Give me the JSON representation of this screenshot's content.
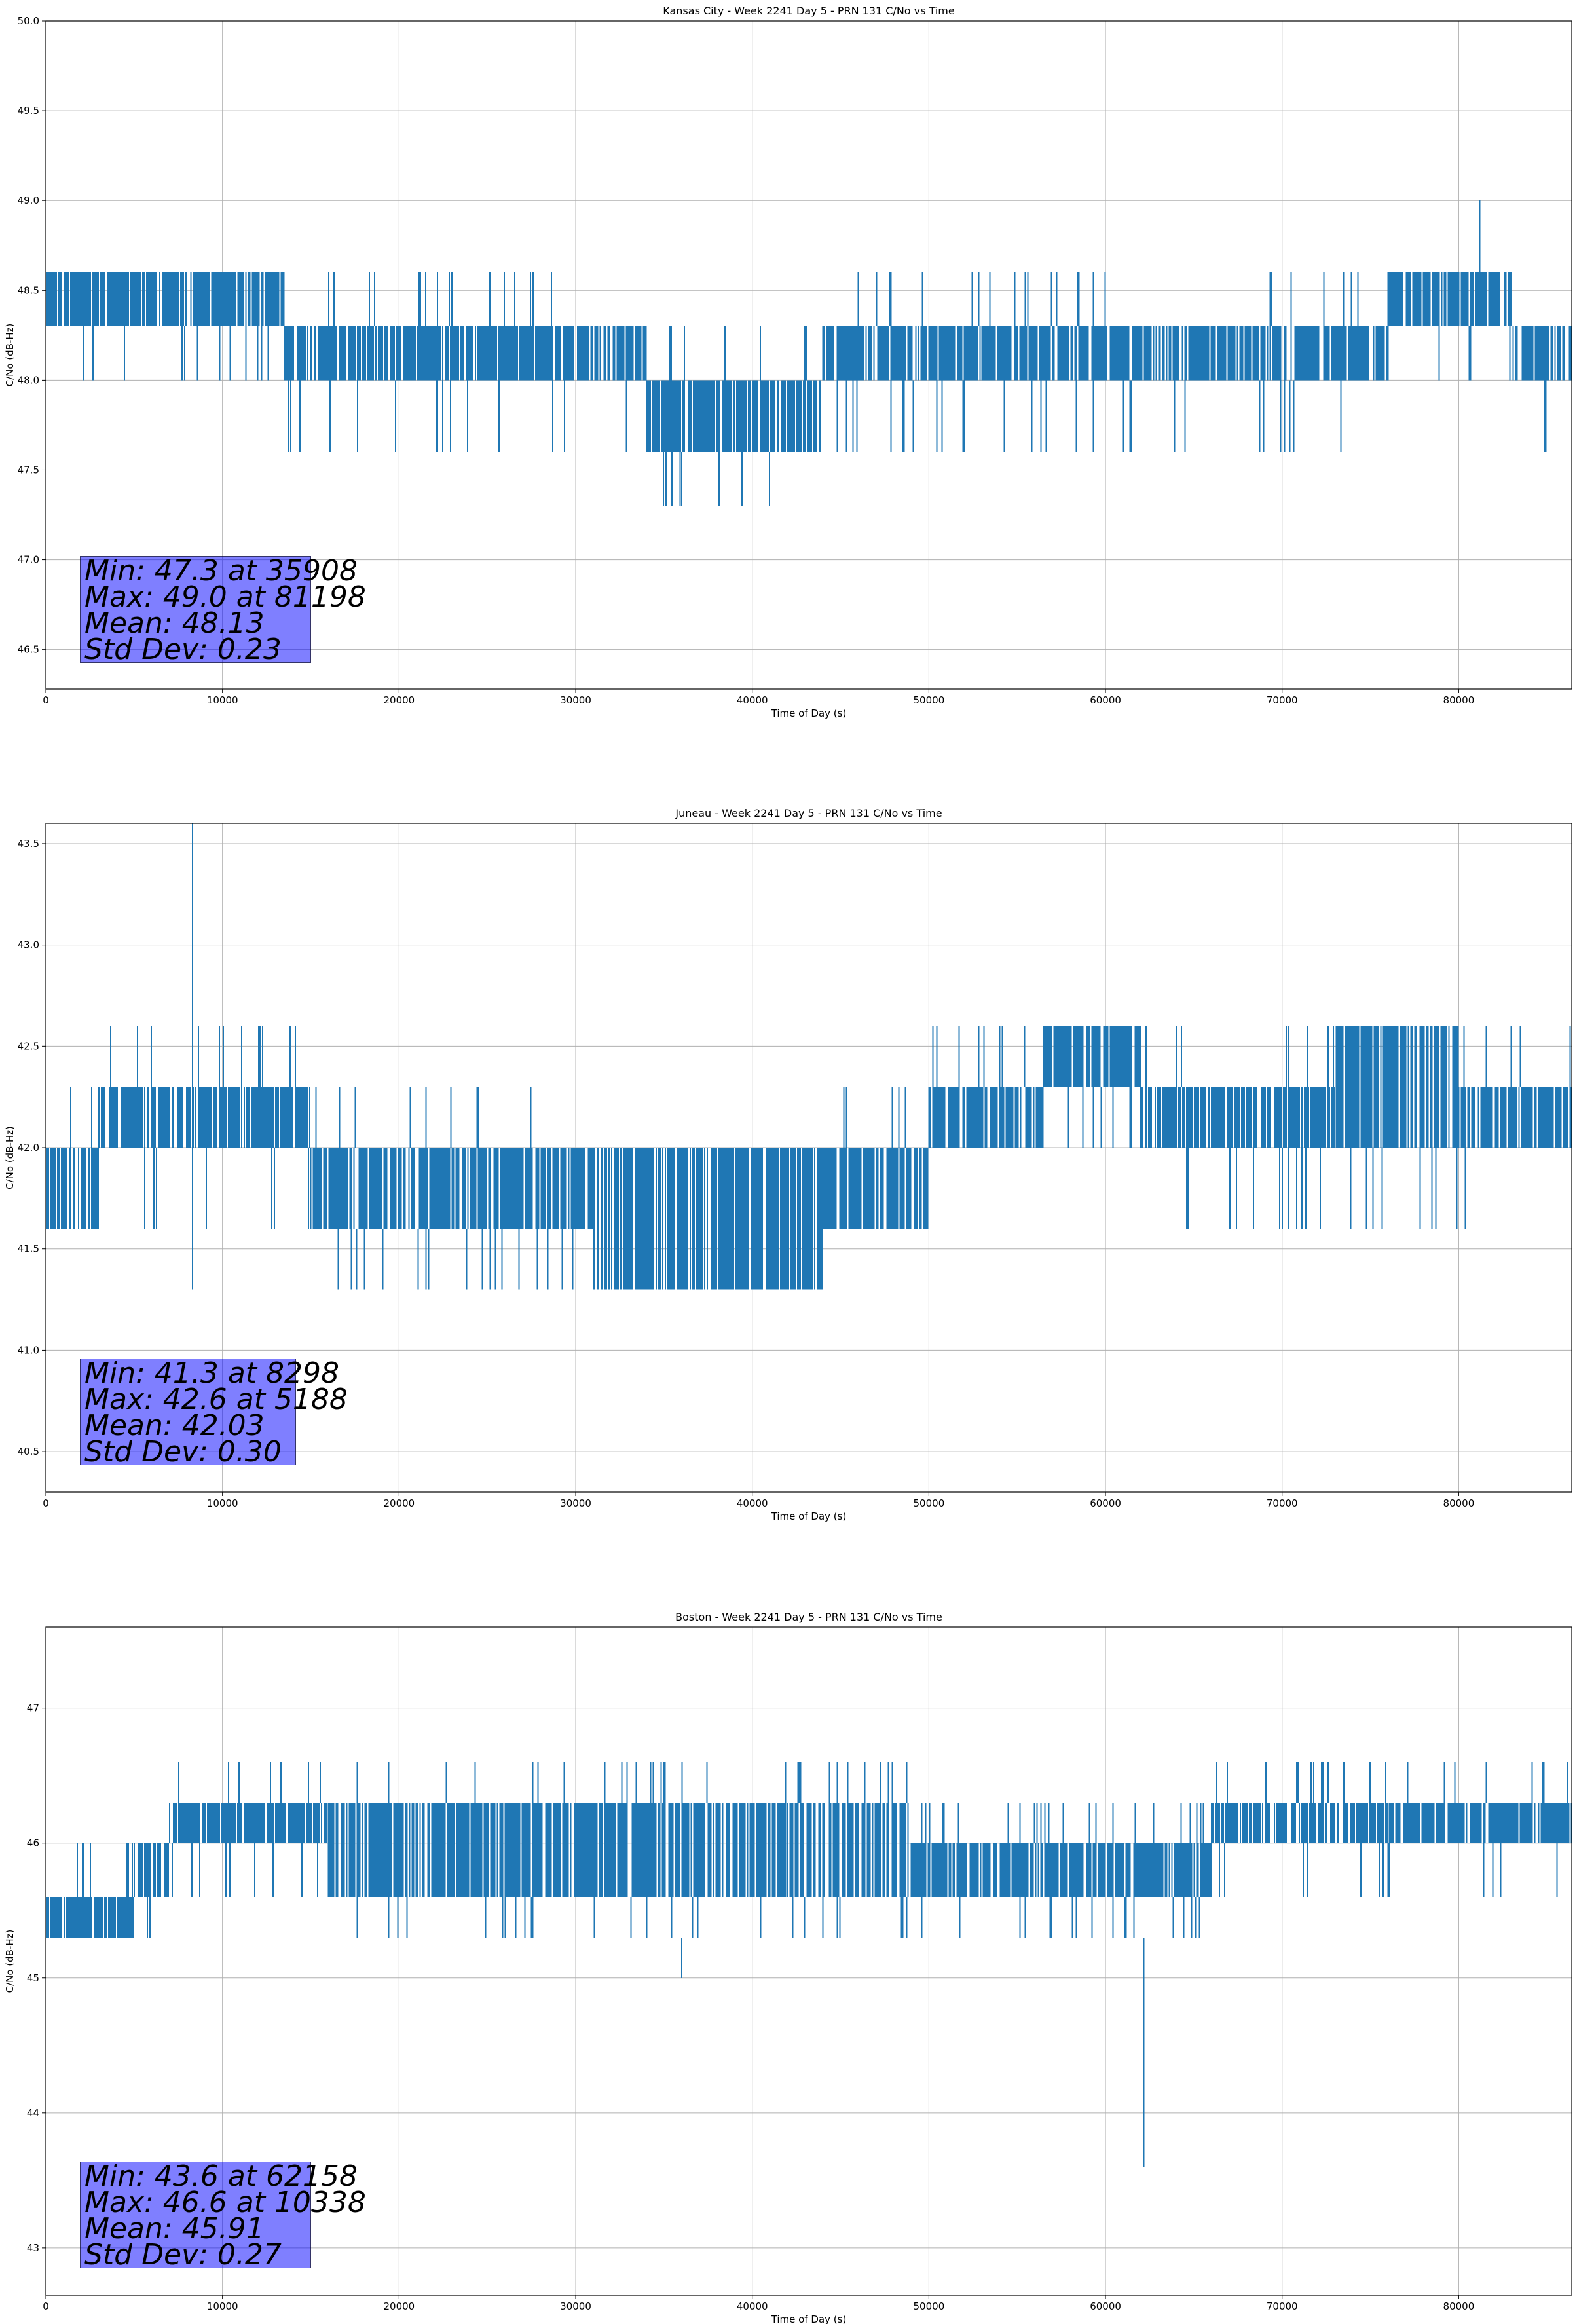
{
  "chart_data": [
    {
      "type": "line",
      "title": "Kansas City - Week 2241 Day 5 - PRN 131 C/No vs Time",
      "xlabel": "Time of Day (s)",
      "ylabel": "C/No (dB-Hz)",
      "xlim": [
        0,
        86400
      ],
      "ylim": [
        46.28,
        50.0
      ],
      "xticks": [
        0,
        10000,
        20000,
        30000,
        40000,
        50000,
        60000,
        70000,
        80000
      ],
      "yticks": [
        46.5,
        47.0,
        47.5,
        48.0,
        48.5,
        49.0,
        49.5,
        50.0
      ],
      "ytick_labels": [
        "46.5",
        "47.0",
        "47.5",
        "48.0",
        "48.5",
        "49.0",
        "49.5",
        "50.0"
      ],
      "grid": true,
      "color": "#1f77b4",
      "levels": [
        47.6,
        48.0,
        48.3,
        48.6
      ],
      "segments": [
        {
          "x": [
            0,
            8000
          ],
          "band": [
            48.3,
            48.6
          ],
          "dips": [
            48.0
          ]
        },
        {
          "x": [
            8000,
            13500
          ],
          "band": [
            48.3,
            48.6
          ],
          "dips": [
            48.0
          ]
        },
        {
          "x": [
            13500,
            30500
          ],
          "band": [
            48.0,
            48.3
          ],
          "dips": [
            47.6
          ],
          "spikes": [
            48.6
          ]
        },
        {
          "x": [
            30500,
            34000
          ],
          "band": [
            48.0,
            48.3
          ],
          "dips": [
            47.6
          ]
        },
        {
          "x": [
            34000,
            41500
          ],
          "band": [
            47.6,
            48.0
          ],
          "dips": [
            47.3
          ],
          "spikes": [
            48.3
          ]
        },
        {
          "x": [
            41500,
            44000
          ],
          "band": [
            47.6,
            48.0
          ],
          "spikes": [
            48.3
          ]
        },
        {
          "x": [
            44000,
            53000
          ],
          "band": [
            48.0,
            48.3
          ],
          "spikes": [
            48.6
          ],
          "dips": [
            47.6
          ]
        },
        {
          "x": [
            53000,
            76000
          ],
          "band": [
            48.0,
            48.3
          ],
          "spikes": [
            48.6
          ],
          "dips": [
            47.6
          ]
        },
        {
          "x": [
            76000,
            83000
          ],
          "band": [
            48.3,
            48.6
          ],
          "dips": [
            48.0
          ]
        },
        {
          "x": [
            83000,
            86400
          ],
          "band": [
            48.0,
            48.3
          ],
          "dips": [
            47.6
          ]
        }
      ],
      "extremes": [
        {
          "x": 35908,
          "y": 47.3
        },
        {
          "x": 81198,
          "y": 49.0
        }
      ],
      "stats": [
        "Min: 47.3 at 35908",
        "Max: 49.0 at 81198",
        "Mean: 48.13",
        "Std Dev: 0.23"
      ]
    },
    {
      "type": "line",
      "title": "Juneau - Week 2241 Day 5 - PRN 131 C/No vs Time",
      "xlabel": "Time of Day (s)",
      "ylabel": "C/No (dB-Hz)",
      "xlim": [
        0,
        86400
      ],
      "ylim": [
        40.3,
        43.6
      ],
      "xticks": [
        0,
        10000,
        20000,
        30000,
        40000,
        50000,
        60000,
        70000,
        80000
      ],
      "yticks": [
        40.5,
        41.0,
        41.5,
        42.0,
        42.5,
        43.0,
        43.5
      ],
      "ytick_labels": [
        "40.5",
        "41.0",
        "41.5",
        "42.0",
        "42.5",
        "43.0",
        "43.5"
      ],
      "grid": true,
      "color": "#1f77b4",
      "levels": [
        41.3,
        41.6,
        42.0,
        42.3,
        42.6
      ],
      "segments": [
        {
          "x": [
            0,
            3000
          ],
          "band": [
            41.6,
            42.0
          ],
          "spikes": [
            42.3
          ]
        },
        {
          "x": [
            3000,
            15000
          ],
          "band": [
            42.0,
            42.3
          ],
          "dips": [
            41.6
          ],
          "spikes": [
            42.6
          ]
        },
        {
          "x": [
            15000,
            31000
          ],
          "band": [
            41.6,
            42.0
          ],
          "dips": [
            41.3
          ],
          "spikes": [
            42.3
          ]
        },
        {
          "x": [
            31000,
            44000
          ],
          "band": [
            41.3,
            42.0
          ],
          "dips": [
            41.3
          ],
          "spikes": [
            42.0
          ]
        },
        {
          "x": [
            44000,
            50000
          ],
          "band": [
            41.6,
            42.0
          ],
          "spikes": [
            42.3
          ]
        },
        {
          "x": [
            50000,
            56500
          ],
          "band": [
            42.0,
            42.3
          ],
          "spikes": [
            42.6
          ]
        },
        {
          "x": [
            56500,
            62000
          ],
          "band": [
            42.3,
            42.6
          ],
          "dips": [
            42.0
          ]
        },
        {
          "x": [
            62000,
            73000
          ],
          "band": [
            42.0,
            42.3
          ],
          "spikes": [
            42.6
          ],
          "dips": [
            41.6
          ]
        },
        {
          "x": [
            73000,
            80000
          ],
          "band": [
            42.0,
            42.6
          ],
          "dips": [
            41.6
          ]
        },
        {
          "x": [
            80000,
            86400
          ],
          "band": [
            42.0,
            42.3
          ],
          "spikes": [
            42.6
          ],
          "dips": [
            41.6
          ]
        }
      ],
      "extremes": [
        {
          "x": 8298,
          "y": 41.3
        },
        {
          "x": 5188,
          "y": 42.6
        }
      ],
      "stats": [
        "Min: 41.3 at 8298",
        "Max: 42.6 at 5188",
        "Mean: 42.03",
        "Std Dev: 0.30"
      ]
    },
    {
      "type": "line",
      "title": "Boston - Week 2241 Day 5 - PRN 131 C/No vs Time",
      "xlabel": "Time of Day (s)",
      "ylabel": "C/No (dB-Hz)",
      "xlim": [
        0,
        86400
      ],
      "ylim": [
        42.65,
        47.6
      ],
      "xticks": [
        0,
        10000,
        20000,
        30000,
        40000,
        50000,
        60000,
        70000,
        80000
      ],
      "yticks": [
        43,
        44,
        45,
        46,
        47
      ],
      "ytick_labels": [
        "43",
        "44",
        "45",
        "46",
        "47"
      ],
      "grid": true,
      "color": "#1f77b4",
      "levels": [
        45.3,
        45.6,
        46.0,
        46.3,
        46.6
      ],
      "segments": [
        {
          "x": [
            0,
            5000
          ],
          "band": [
            45.3,
            45.6
          ],
          "spikes": [
            46.0
          ]
        },
        {
          "x": [
            5000,
            7000
          ],
          "band": [
            45.6,
            46.0
          ],
          "dips": [
            45.3
          ]
        },
        {
          "x": [
            7000,
            16000
          ],
          "band": [
            46.0,
            46.3
          ],
          "spikes": [
            46.6
          ],
          "dips": [
            45.6
          ]
        },
        {
          "x": [
            16000,
            42000
          ],
          "band": [
            45.6,
            46.3
          ],
          "dips": [
            45.3
          ],
          "spikes": [
            46.6
          ]
        },
        {
          "x": [
            42000,
            49000
          ],
          "band": [
            45.6,
            46.3
          ],
          "dips": [
            45.3
          ],
          "spikes": [
            46.6
          ]
        },
        {
          "x": [
            49000,
            66000
          ],
          "band": [
            45.6,
            46.0
          ],
          "dips": [
            45.3
          ],
          "spikes": [
            46.3
          ]
        },
        {
          "x": [
            66000,
            76000
          ],
          "band": [
            46.0,
            46.3
          ],
          "dips": [
            45.6
          ],
          "spikes": [
            46.6
          ]
        },
        {
          "x": [
            76000,
            86400
          ],
          "band": [
            46.0,
            46.3
          ],
          "dips": [
            45.6
          ],
          "spikes": [
            46.6
          ]
        }
      ],
      "extremes": [
        {
          "x": 36000,
          "y": 45.0
        },
        {
          "x": 62158,
          "y": 43.6
        },
        {
          "x": 10338,
          "y": 46.6
        }
      ],
      "stats": [
        "Min: 43.6 at 62158",
        "Max: 46.6 at 10338",
        "Mean: 45.91",
        "Std Dev: 0.27"
      ]
    }
  ]
}
